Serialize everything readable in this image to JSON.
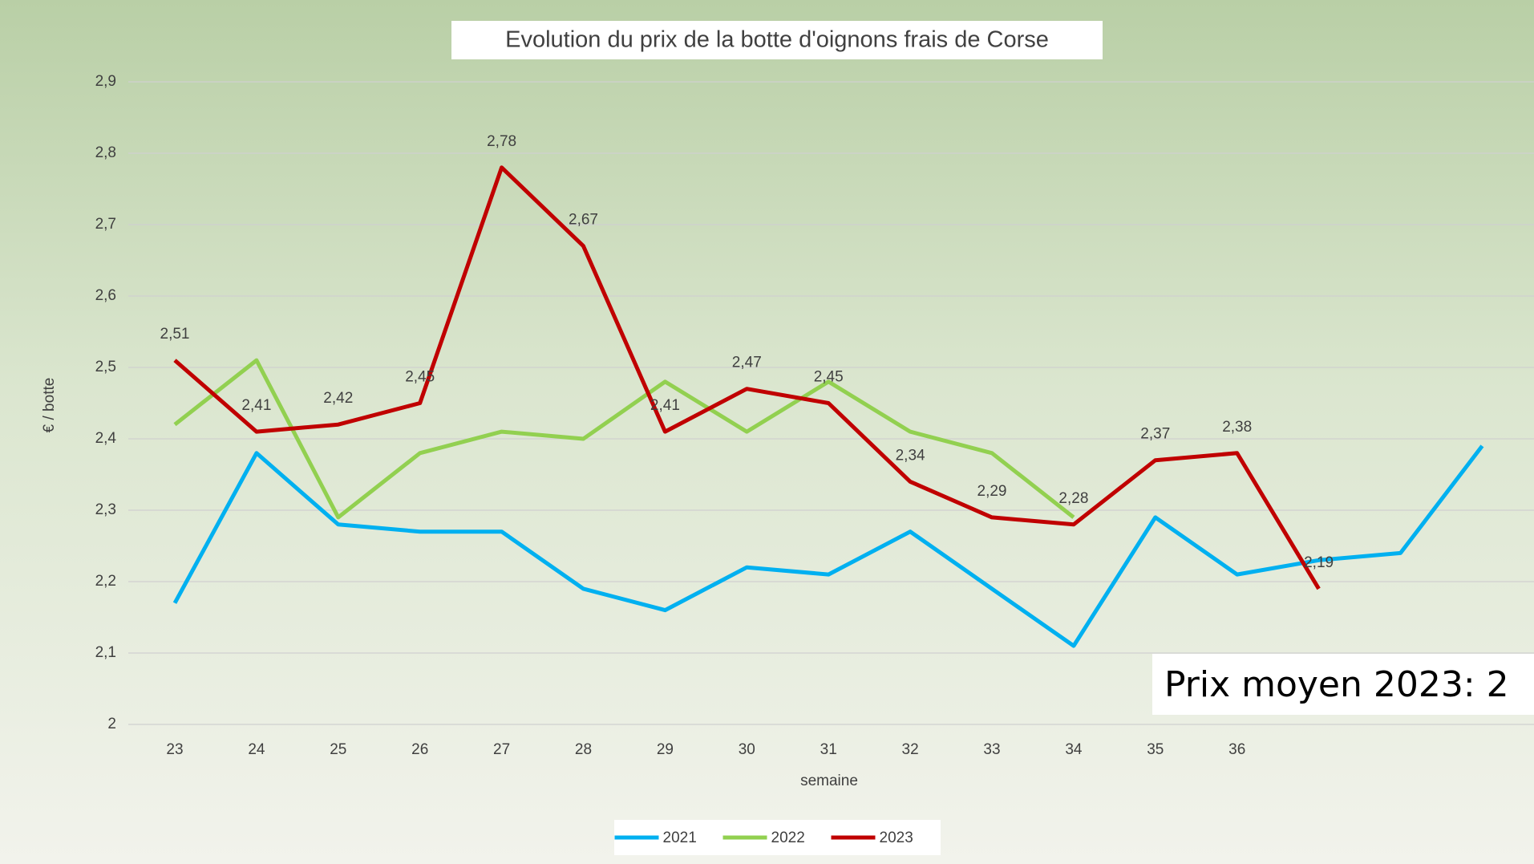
{
  "chart_data": {
    "type": "line",
    "title": "Evolution du prix de la botte d'oignons frais de Corse",
    "x_label": "semaine",
    "y_label": "€ / botte",
    "annotation": "Prix moyen 2023: 2",
    "categories": [
      "23",
      "24",
      "25",
      "26",
      "27",
      "28",
      "29",
      "30",
      "31",
      "32",
      "33",
      "34",
      "35",
      "36",
      null,
      null,
      null
    ],
    "ylim": [
      2,
      2.9
    ],
    "yticks": [
      2,
      {
        "value": 2.1,
        "label": "2,1"
      },
      {
        "value": 2.2,
        "label": "2,2"
      },
      {
        "value": 2.3,
        "label": "2,3"
      },
      {
        "value": 2.4,
        "label": "2,4"
      },
      {
        "value": 2.5,
        "label": "2,5"
      },
      {
        "value": 2.6,
        "label": "2,6"
      },
      {
        "value": 2.7,
        "label": "2,7"
      },
      {
        "value": 2.8,
        "label": "2,8"
      },
      {
        "value": 2.9,
        "label": "2,9"
      }
    ],
    "grid": true,
    "legend": "bottom",
    "series": [
      {
        "name": "2021",
        "color": "#00b0f0",
        "values": [
          2.17,
          2.38,
          2.28,
          2.27,
          2.27,
          2.19,
          2.16,
          2.22,
          2.21,
          2.27,
          2.19,
          2.11,
          2.29,
          2.21,
          2.23,
          2.24,
          2.39
        ]
      },
      {
        "name": "2022",
        "color": "#92d050",
        "values": [
          2.42,
          2.51,
          2.29,
          2.38,
          2.41,
          2.4,
          2.48,
          2.41,
          2.48,
          2.41,
          2.38,
          2.29,
          null,
          null,
          null,
          null,
          null
        ]
      },
      {
        "name": "2023",
        "color": "#c00000",
        "values": [
          2.51,
          2.41,
          2.42,
          2.45,
          2.78,
          2.67,
          2.41,
          2.47,
          2.45,
          2.34,
          2.29,
          2.28,
          2.37,
          2.38,
          2.19,
          null,
          null
        ],
        "value_labels": [
          "2,51",
          "2,41",
          "2,42",
          "2,45",
          "2,78",
          "2,67",
          "2,41",
          "2,47",
          "2,45",
          "2,34",
          "2,29",
          "2,28",
          "2,37",
          "2,38",
          "2,19",
          null,
          null
        ]
      }
    ]
  }
}
